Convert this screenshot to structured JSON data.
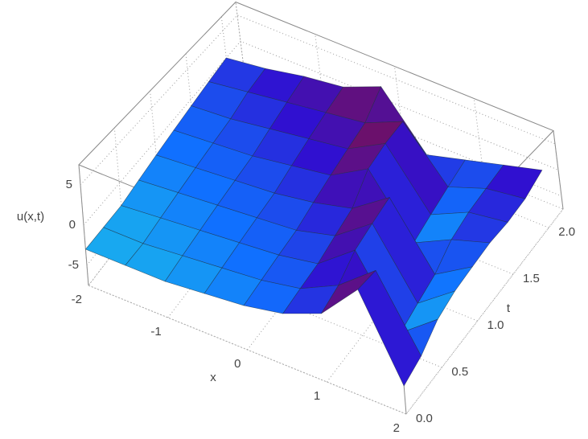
{
  "chart_data": {
    "type": "surface3d",
    "x_label": "x",
    "y_label": "t",
    "z_label": "u(x,t)",
    "x": [
      -2,
      -1.5,
      -1,
      -0.5,
      0,
      0.5,
      1,
      1.5,
      2
    ],
    "y": [
      0,
      0.25,
      0.5,
      0.75,
      1,
      1.25,
      1.5,
      1.75,
      2
    ],
    "z": [
      [
        -3,
        -3,
        -3,
        -2.5,
        -2,
        -1,
        1,
        6,
        -4
      ],
      [
        -3,
        -3,
        -2.5,
        -2,
        -1.5,
        -0.5,
        2,
        6,
        -3
      ],
      [
        -3,
        -2.5,
        -2,
        -1.5,
        -1,
        0,
        4,
        -5,
        -1
      ],
      [
        -2.5,
        -2,
        -1.5,
        -1,
        -0.5,
        1,
        5,
        -4,
        0
      ],
      [
        -2,
        -1.5,
        -1,
        -0.5,
        0.5,
        2,
        6,
        -3,
        0.5
      ],
      [
        -1.5,
        -1,
        -0.5,
        0.5,
        1.5,
        5,
        -4,
        -1,
        1
      ],
      [
        -1,
        -0.5,
        0.5,
        1.5,
        2.5,
        6,
        -3,
        0,
        1
      ],
      [
        -0.5,
        0.5,
        1.5,
        2.5,
        3.5,
        6.5,
        -2,
        0.5,
        1.5
      ],
      [
        0,
        1,
        2.5,
        3.5,
        6.5,
        -3,
        -1,
        1,
        3
      ]
    ],
    "xlim": [
      -2,
      2
    ],
    "ylim": [
      0,
      2.2
    ],
    "zlim": [
      -7.5,
      7.5
    ],
    "xticks": [
      -2,
      -1,
      0,
      1,
      2
    ],
    "yticks": [
      {
        "value": 0,
        "label": "0.0"
      },
      {
        "value": 0.5,
        "label": "0.5"
      },
      {
        "value": 1,
        "label": "1.0"
      },
      {
        "value": 1.5,
        "label": "1.5"
      },
      {
        "value": 2,
        "label": "2.0"
      }
    ],
    "zticks": [
      -5,
      0,
      5
    ],
    "colormap": [
      "#22c832",
      "#20e0e0",
      "#1070ff",
      "#3010d0",
      "#6a1070",
      "#8a1a10"
    ],
    "mesh_color": "#203040"
  }
}
